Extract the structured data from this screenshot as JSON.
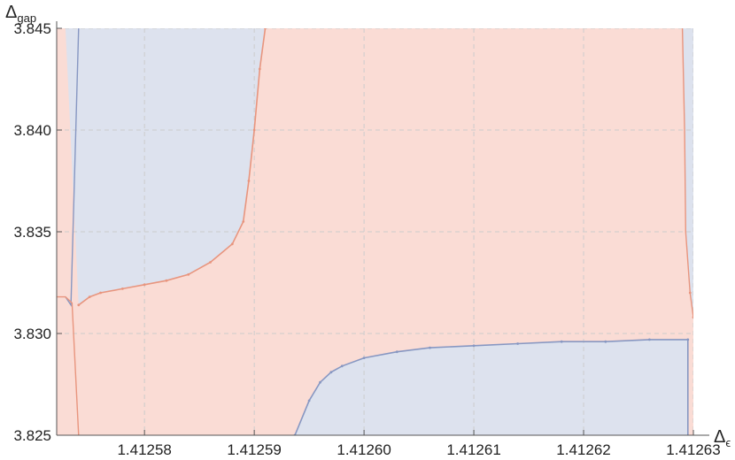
{
  "chart_data": {
    "type": "area",
    "x_axis": {
      "symbol": "Δ",
      "subscript": "ϵ",
      "range": [
        1.412572,
        1.41263
      ],
      "ticks": [
        "1.41258",
        "1.41259",
        "1.41260",
        "1.41261",
        "1.41262",
        "1.41263"
      ],
      "tick_values": [
        1.41258,
        1.41259,
        1.4126,
        1.41261,
        1.41262,
        1.41263
      ]
    },
    "y_axis": {
      "symbol": "Δ",
      "subscript": "gap",
      "range": [
        3.825,
        3.845
      ],
      "ticks": [
        "3.825",
        "3.830",
        "3.835",
        "3.840",
        "3.845"
      ],
      "tick_values": [
        3.825,
        3.83,
        3.835,
        3.84,
        3.845
      ]
    },
    "grid": true,
    "colors": {
      "allowed_fill": "#dde2ee",
      "allowed_line": "#8797c2",
      "excluded_fill": "#fadcd5",
      "excluded_line": "#e8957e",
      "axis": "#555555",
      "grid": "#cccccc"
    },
    "regions": {
      "left_strip_boundary": [
        [
          1.412572,
          3.825
        ],
        [
          1.412572,
          3.845
        ]
      ],
      "left_edge_boundary": [
        [
          1.4125728,
          3.8318
        ],
        [
          1.4125733,
          3.8314
        ],
        [
          1.412574,
          3.845
        ]
      ],
      "left_edge_feature": [
        [
          1.412571,
          3.8318
        ],
        [
          1.4125728,
          3.8318
        ],
        [
          1.4125734,
          3.8315
        ],
        [
          1.412574,
          3.825
        ]
      ],
      "upper_boundary": [
        [
          1.412574,
          3.8314
        ],
        [
          1.412575,
          3.8318
        ],
        [
          1.412576,
          3.832
        ],
        [
          1.412578,
          3.8322
        ],
        [
          1.41258,
          3.8324
        ],
        [
          1.412582,
          3.8326
        ],
        [
          1.412584,
          3.8329
        ],
        [
          1.412586,
          3.8335
        ],
        [
          1.412588,
          3.8344
        ],
        [
          1.412589,
          3.8355
        ],
        [
          1.4125895,
          3.8375
        ],
        [
          1.41259,
          3.84
        ],
        [
          1.4125905,
          3.843
        ],
        [
          1.412591,
          3.845
        ]
      ],
      "lower_boundary": [
        [
          1.4125937,
          3.825
        ],
        [
          1.412595,
          3.8267
        ],
        [
          1.412596,
          3.8276
        ],
        [
          1.412597,
          3.8281
        ],
        [
          1.412598,
          3.8284
        ],
        [
          1.4126,
          3.8288
        ],
        [
          1.412603,
          3.8291
        ],
        [
          1.412606,
          3.8293
        ],
        [
          1.41261,
          3.8294
        ],
        [
          1.412614,
          3.8295
        ],
        [
          1.412618,
          3.8296
        ],
        [
          1.412622,
          3.8296
        ],
        [
          1.412626,
          3.8297
        ],
        [
          1.4126295,
          3.8297
        ],
        [
          1.4126295,
          3.825
        ]
      ],
      "right_boundary": [
        [
          1.412629,
          3.845
        ],
        [
          1.4126292,
          3.84
        ],
        [
          1.4126293,
          3.835
        ],
        [
          1.4126297,
          3.832
        ],
        [
          1.41263,
          3.8308
        ],
        [
          1.4126304,
          3.8302
        ],
        [
          1.412631,
          3.8297
        ],
        [
          1.412631,
          3.825
        ]
      ]
    }
  }
}
